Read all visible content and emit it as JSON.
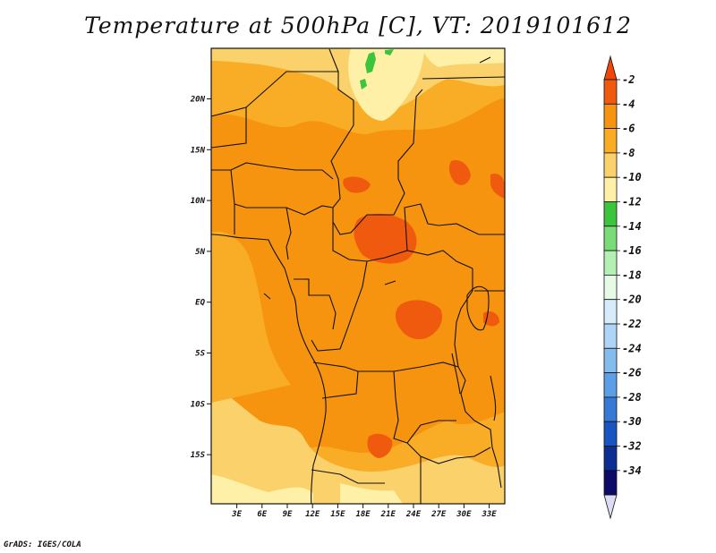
{
  "title": "Temperature at 500hPa [C], VT: 2019101612",
  "credit": "GrADS: IGES/COLA",
  "x_ticks": [
    "3E",
    "6E",
    "9E",
    "12E",
    "15E",
    "18E",
    "21E",
    "24E",
    "27E",
    "30E",
    "33E"
  ],
  "y_ticks": [
    "20N",
    "15N",
    "10N",
    "5N",
    "EQ",
    "5S",
    "10S",
    "15S"
  ],
  "colorbar": {
    "labels": [
      "-2",
      "-4",
      "-6",
      "-8",
      "-10",
      "-12",
      "-14",
      "-16",
      "-18",
      "-20",
      "-22",
      "-24",
      "-26",
      "-28",
      "-30",
      "-32",
      "-34"
    ],
    "colors": [
      "#f05a0f",
      "#f7940f",
      "#f9ac25",
      "#fbd16b",
      "#fef0a6",
      "#3cc43c",
      "#79dc79",
      "#b4f0b4",
      "#e6fbe6",
      "#d6ecfb",
      "#aed5f5",
      "#84bcee",
      "#5d9fe6",
      "#3679d6",
      "#1855c0",
      "#0c2d94",
      "#0c0c68"
    ],
    "top_color": "#f0460a",
    "bottom_color": "#dcdcf5"
  },
  "map_colors": {
    "dark_orange": "#f05a0f",
    "orange": "#f7940f",
    "light_orange": "#f9ac25",
    "yellow": "#fbd16b",
    "pale_yellow": "#fef0a6",
    "green": "#3cc43c",
    "border": "#111111"
  }
}
